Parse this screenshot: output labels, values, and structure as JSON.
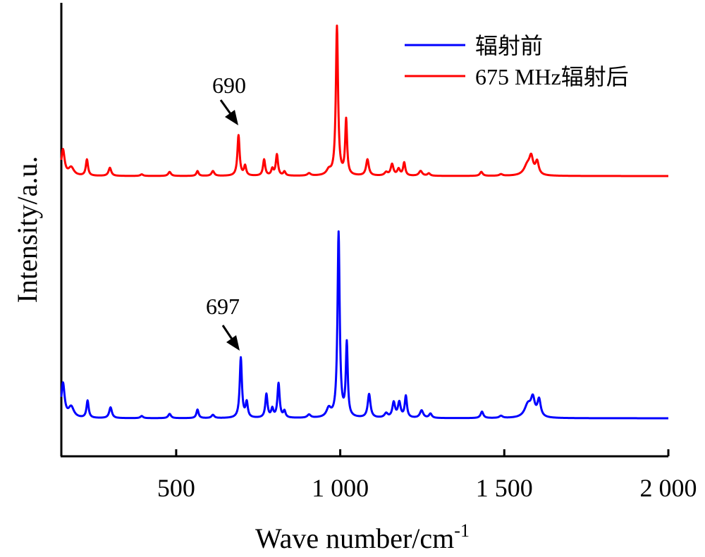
{
  "chart_data": {
    "type": "line",
    "xlabel": "Wave number/cm",
    "xlabel_sup": "-1",
    "ylabel": "Intensity/a.u.",
    "xlim": [
      150,
      2000
    ],
    "x_ticks": [
      500,
      1000,
      1500,
      2000
    ],
    "x_tick_labels": [
      "500",
      "1 000",
      "1 500",
      "2 000"
    ],
    "y_ticks_shown": false,
    "legend_position": "top-right",
    "legend": [
      {
        "label": "辐射前",
        "color": "#0000ff"
      },
      {
        "label": "675 MHz辐射后",
        "color": "#ff0000"
      }
    ],
    "annotations": [
      {
        "text": "690",
        "x": 690,
        "series": "675 MHz辐射后"
      },
      {
        "text": "697",
        "x": 697,
        "series": "辐射前"
      }
    ],
    "series": [
      {
        "name": "辐射前",
        "color": "#0000ff",
        "baseline": 0,
        "peaks": [
          [
            155,
            0.16,
            6
          ],
          [
            180,
            0.05,
            10
          ],
          [
            230,
            0.08,
            4
          ],
          [
            300,
            0.05,
            5
          ],
          [
            395,
            0.01,
            5
          ],
          [
            480,
            0.02,
            5
          ],
          [
            565,
            0.04,
            4
          ],
          [
            612,
            0.015,
            5
          ],
          [
            697,
            0.28,
            4
          ],
          [
            715,
            0.07,
            4
          ],
          [
            775,
            0.11,
            4
          ],
          [
            793,
            0.04,
            4
          ],
          [
            812,
            0.16,
            4
          ],
          [
            830,
            0.03,
            4
          ],
          [
            905,
            0.015,
            6
          ],
          [
            965,
            0.04,
            8
          ],
          [
            995,
            0.86,
            4
          ],
          [
            1020,
            0.34,
            3.5
          ],
          [
            1088,
            0.11,
            5
          ],
          [
            1140,
            0.02,
            6
          ],
          [
            1163,
            0.07,
            5
          ],
          [
            1180,
            0.07,
            5
          ],
          [
            1200,
            0.1,
            4
          ],
          [
            1248,
            0.035,
            6
          ],
          [
            1275,
            0.02,
            5
          ],
          [
            1432,
            0.03,
            5
          ],
          [
            1490,
            0.01,
            6
          ],
          [
            1572,
            0.06,
            12
          ],
          [
            1587,
            0.08,
            7
          ],
          [
            1606,
            0.08,
            6
          ]
        ]
      },
      {
        "name": "675 MHz辐射后",
        "color": "#ff0000",
        "baseline": 0,
        "peaks": [
          [
            155,
            0.16,
            6
          ],
          [
            180,
            0.05,
            10
          ],
          [
            228,
            0.1,
            4
          ],
          [
            298,
            0.05,
            5
          ],
          [
            395,
            0.01,
            5
          ],
          [
            480,
            0.025,
            5
          ],
          [
            565,
            0.03,
            4
          ],
          [
            612,
            0.03,
            5
          ],
          [
            690,
            0.25,
            4
          ],
          [
            710,
            0.06,
            4
          ],
          [
            768,
            0.1,
            4
          ],
          [
            793,
            0.04,
            4
          ],
          [
            807,
            0.13,
            4
          ],
          [
            830,
            0.025,
            4
          ],
          [
            905,
            0.015,
            6
          ],
          [
            965,
            0.03,
            8
          ],
          [
            990,
            0.92,
            4
          ],
          [
            1018,
            0.34,
            3.5
          ],
          [
            1083,
            0.1,
            5
          ],
          [
            1140,
            0.02,
            6
          ],
          [
            1158,
            0.07,
            5
          ],
          [
            1178,
            0.04,
            5
          ],
          [
            1195,
            0.08,
            4
          ],
          [
            1245,
            0.03,
            6
          ],
          [
            1270,
            0.015,
            5
          ],
          [
            1430,
            0.025,
            5
          ],
          [
            1490,
            0.01,
            6
          ],
          [
            1570,
            0.06,
            12
          ],
          [
            1582,
            0.1,
            7
          ],
          [
            1600,
            0.08,
            6
          ]
        ]
      }
    ]
  }
}
